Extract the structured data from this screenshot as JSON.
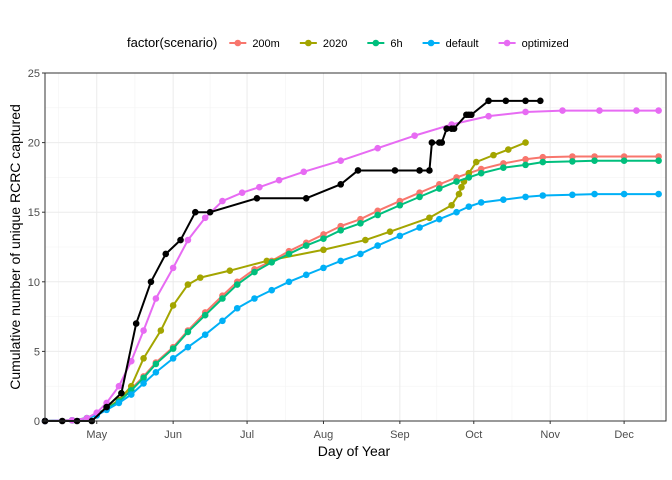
{
  "chart_data": {
    "type": "line",
    "title": "",
    "xlabel": "Day of Year",
    "ylabel": "Cumulative number of unique RCRC captured",
    "xlim": [
      110,
      362
    ],
    "ylim": [
      0,
      25
    ],
    "x_ticks": [
      {
        "label": "May",
        "value": 131
      },
      {
        "label": "Jun",
        "value": 162
      },
      {
        "label": "Jul",
        "value": 192
      },
      {
        "label": "Aug",
        "value": 223
      },
      {
        "label": "Sep",
        "value": 254
      },
      {
        "label": "Oct",
        "value": 284
      },
      {
        "label": "Nov",
        "value": 315
      },
      {
        "label": "Dec",
        "value": 345
      }
    ],
    "y_ticks": [
      0,
      5,
      10,
      15,
      20,
      25
    ],
    "grid": true,
    "legend": {
      "title": "factor(scenario)",
      "position": "top"
    },
    "series": [
      {
        "name": "200m",
        "color": "#F8766D",
        "x": [
          110,
          121,
          127,
          131,
          135,
          140,
          145,
          150,
          155,
          162,
          168,
          175,
          182,
          188,
          195,
          202,
          209,
          216,
          223,
          230,
          238,
          245,
          254,
          262,
          270,
          277,
          282,
          287,
          296,
          305,
          312,
          324,
          333,
          345,
          359
        ],
        "y": [
          0,
          0.05,
          0.2,
          0.5,
          0.9,
          1.5,
          2.3,
          3.2,
          4.2,
          5.3,
          6.5,
          7.8,
          9.0,
          10.0,
          10.9,
          11.5,
          12.2,
          12.8,
          13.4,
          14.0,
          14.5,
          15.1,
          15.8,
          16.4,
          17.0,
          17.5,
          17.8,
          18.1,
          18.5,
          18.8,
          18.95,
          19.0,
          19.0,
          19.0,
          19.0
        ]
      },
      {
        "name": "2020",
        "color": "#A3A500",
        "x": [
          110,
          121,
          127,
          131,
          135,
          140,
          145,
          150,
          157,
          162,
          168,
          173,
          185,
          200,
          223,
          240,
          250,
          266,
          275,
          278,
          279,
          280,
          282,
          285,
          292,
          298,
          305
        ],
        "y": [
          0,
          0.05,
          0.2,
          0.5,
          0.9,
          1.5,
          2.5,
          4.5,
          6.5,
          8.3,
          9.8,
          10.3,
          10.8,
          11.5,
          12.3,
          13.0,
          13.6,
          14.6,
          15.5,
          16.3,
          16.8,
          17.2,
          17.8,
          18.6,
          19.1,
          19.5,
          20.0
        ]
      },
      {
        "name": "6h",
        "color": "#00BF7D",
        "x": [
          110,
          121,
          127,
          131,
          135,
          140,
          145,
          150,
          155,
          162,
          168,
          175,
          182,
          188,
          195,
          202,
          209,
          216,
          223,
          230,
          238,
          245,
          254,
          262,
          270,
          277,
          282,
          287,
          296,
          305,
          312,
          324,
          333,
          345,
          359
        ],
        "y": [
          0,
          0.05,
          0.2,
          0.5,
          0.9,
          1.4,
          2.2,
          3.1,
          4.1,
          5.2,
          6.4,
          7.6,
          8.8,
          9.8,
          10.7,
          11.4,
          12.0,
          12.6,
          13.1,
          13.7,
          14.2,
          14.8,
          15.5,
          16.1,
          16.7,
          17.2,
          17.5,
          17.8,
          18.2,
          18.4,
          18.6,
          18.65,
          18.7,
          18.7,
          18.7
        ]
      },
      {
        "name": "default",
        "color": "#00B0F6",
        "x": [
          110,
          121,
          127,
          131,
          135,
          140,
          145,
          150,
          155,
          162,
          168,
          175,
          182,
          188,
          195,
          202,
          209,
          216,
          223,
          230,
          238,
          245,
          254,
          262,
          270,
          277,
          282,
          287,
          296,
          305,
          312,
          324,
          333,
          345,
          359
        ],
        "y": [
          0,
          0.05,
          0.2,
          0.4,
          0.8,
          1.3,
          1.9,
          2.7,
          3.5,
          4.5,
          5.3,
          6.2,
          7.2,
          8.1,
          8.8,
          9.4,
          10.0,
          10.5,
          11.0,
          11.5,
          12.0,
          12.6,
          13.3,
          13.9,
          14.5,
          15.0,
          15.4,
          15.7,
          15.9,
          16.1,
          16.2,
          16.25,
          16.3,
          16.3,
          16.3
        ]
      },
      {
        "name": "optimized",
        "color": "#E76BF3",
        "x": [
          110,
          121,
          127,
          131,
          135,
          140,
          145,
          150,
          155,
          162,
          168,
          175,
          182,
          190,
          197,
          205,
          215,
          230,
          245,
          260,
          275,
          290,
          305,
          320,
          335,
          350,
          359
        ],
        "y": [
          0,
          0.05,
          0.2,
          0.6,
          1.3,
          2.5,
          4.3,
          6.5,
          8.8,
          11.0,
          13.0,
          14.6,
          15.8,
          16.4,
          16.8,
          17.3,
          17.9,
          18.7,
          19.6,
          20.5,
          21.3,
          21.9,
          22.2,
          22.3,
          22.3,
          22.3,
          22.3
        ]
      },
      {
        "name": "",
        "color": "#000000",
        "x": [
          110,
          117,
          123,
          129,
          135,
          141,
          147,
          153,
          159,
          165,
          171,
          177,
          196,
          216,
          230,
          237,
          252,
          262,
          266,
          267,
          270,
          271,
          273,
          275,
          276,
          281,
          282,
          283,
          290,
          297,
          305,
          311
        ],
        "y": [
          0,
          0,
          0,
          0,
          1,
          2,
          7,
          10,
          12,
          13,
          15,
          15,
          16,
          16,
          17,
          18,
          18,
          18,
          18,
          20,
          20,
          20,
          21,
          21,
          21,
          22,
          22,
          22,
          23,
          23,
          23,
          23
        ]
      }
    ]
  }
}
